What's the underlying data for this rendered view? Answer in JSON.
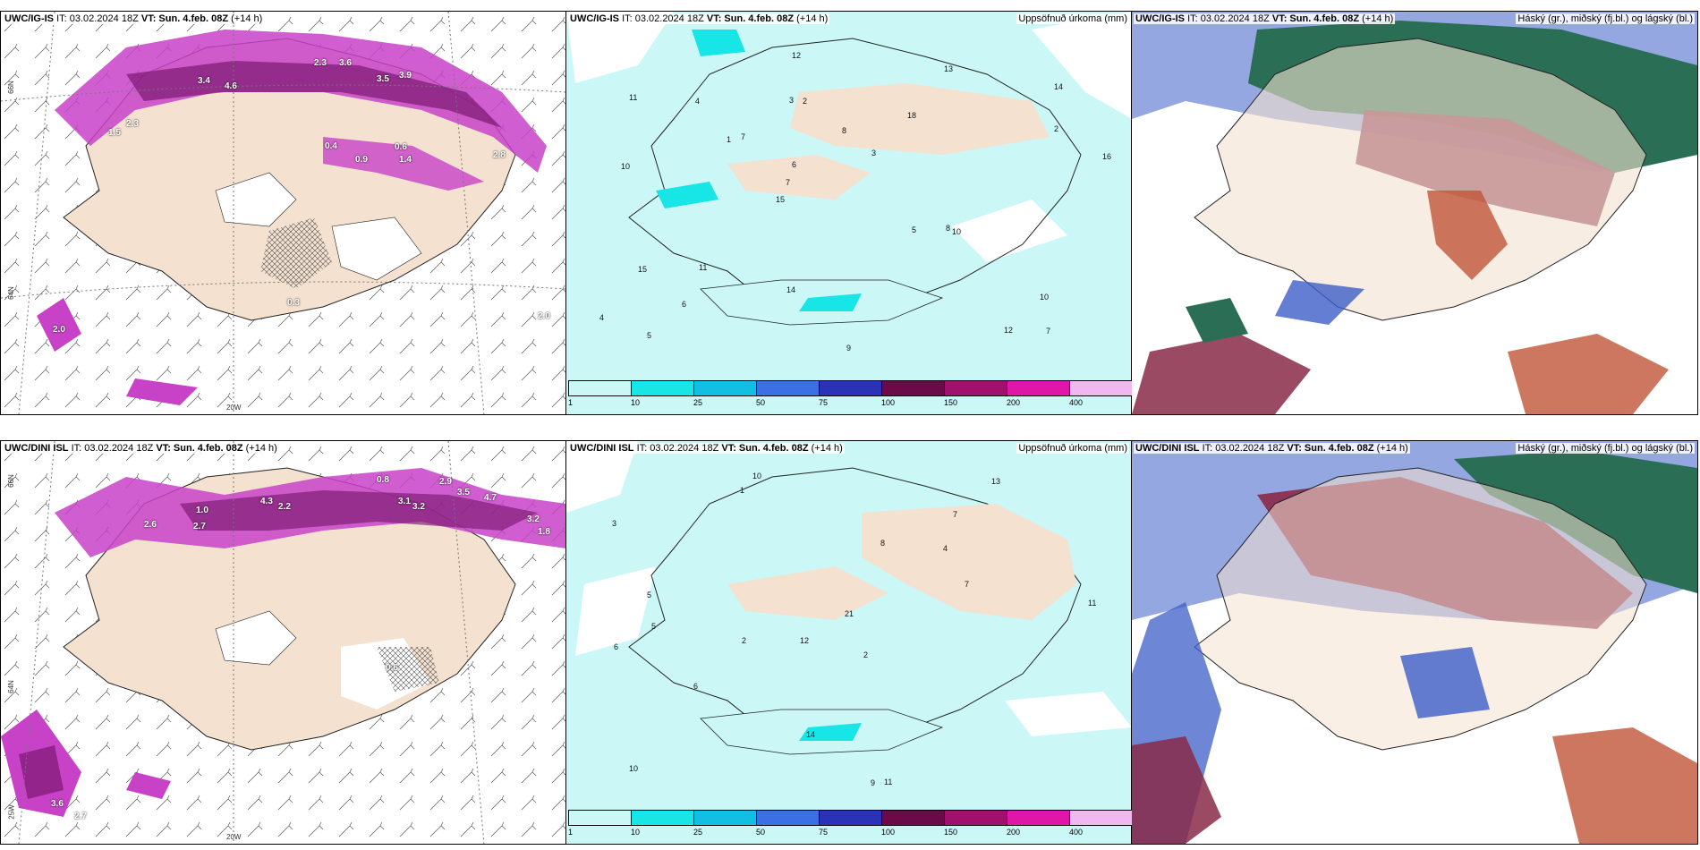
{
  "panels": [
    {
      "id": "top-left",
      "title_model": "UWC/IG-IS",
      "title_it": "IT: 03.02.2024 18Z",
      "title_vt": "VT: Sun. 4.feb. 08Z",
      "title_lead": "(+14 h)",
      "right_title": "",
      "precip_labels": [
        "3.4",
        "4.6",
        "2.3",
        "3.6",
        "3.5",
        "3.9",
        "1.5",
        "2.3",
        "0.4",
        "0.9",
        "0.6",
        "1.4",
        "0.3",
        "2.0",
        "2.8",
        "2.0"
      ]
    },
    {
      "id": "top-middle",
      "title_model": "UWC/IG-IS",
      "title_it": "IT: 03.02.2024 18Z",
      "title_vt": "VT: Sun. 4.feb. 08Z",
      "title_lead": "(+14 h)",
      "right_title": "Uppsöfnuð úrkoma (mm)",
      "numbers": [
        "7",
        "10",
        "14",
        "15",
        "18",
        "5",
        "3",
        "8",
        "15",
        "7",
        "4",
        "6",
        "2",
        "3",
        "10",
        "11",
        "12",
        "16",
        "5",
        "2",
        "7",
        "14",
        "6",
        "4",
        "13",
        "11",
        "12",
        "10",
        "8",
        "9",
        "1"
      ]
    },
    {
      "id": "top-right",
      "title_model": "UWC/IG-IS",
      "title_it": "IT: 03.02.2024 18Z",
      "title_vt": "VT: Sun. 4.feb. 08Z",
      "title_lead": "(+14 h)",
      "right_title": "Háský (gr.), miðský (fj.bl.) og lágský (bl.)"
    },
    {
      "id": "bottom-left",
      "title_model": "UWC/DINI ISL",
      "title_it": "IT: 03.02.2024 18Z",
      "title_vt": "VT: Sun. 4.feb. 08Z",
      "title_lead": "(+14 h)",
      "right_title": "",
      "precip_labels": [
        "2.6",
        "2.7",
        "1.0",
        "4.3",
        "2.2",
        "3.1",
        "3.2",
        "2.9",
        "3.5",
        "4.7",
        "3.2",
        "1.8",
        "0.6",
        "3.6",
        "2.7",
        "0.8"
      ]
    },
    {
      "id": "bottom-middle",
      "title_model": "UWC/DINI ISL",
      "title_it": "IT: 03.02.2024 18Z",
      "title_vt": "VT: Sun. 4.feb. 08Z",
      "title_lead": "(+14 h)",
      "right_title": "Uppsöfnuð úrkoma (mm)",
      "numbers": [
        "10",
        "7",
        "11",
        "12",
        "2",
        "5",
        "3",
        "4",
        "6",
        "8",
        "21",
        "10",
        "1",
        "2",
        "9",
        "11",
        "14",
        "13",
        "7",
        "6",
        "5"
      ]
    },
    {
      "id": "bottom-right",
      "title_model": "UWC/DINI ISL",
      "title_it": "IT: 03.02.2024 18Z",
      "title_vt": "VT: Sun. 4.feb. 08Z",
      "title_lead": "(+14 h)",
      "right_title": "Háský (gr.), miðský (fj.bl.) og lágský (bl.)"
    }
  ],
  "colorbar": {
    "labels": [
      "1",
      "10",
      "25",
      "50",
      "75",
      "100",
      "150",
      "200",
      "400"
    ],
    "colors": [
      "#ccf7f7",
      "#18e6e6",
      "#12bfe3",
      "#3b6fe3",
      "#2a32b8",
      "#6b0a46",
      "#a0106e",
      "#e016a8",
      "#f0b8ef"
    ]
  },
  "axis_labels": {
    "lat66": "66N",
    "lat64": "64N",
    "lon20": "20W",
    "lon25": "25W"
  },
  "colors": {
    "land": "#f4e1cf",
    "precip_light": "#ccf7f7",
    "precip_mag": "#c842c8",
    "cloud_high": "#2a6e55",
    "cloud_mid": "#8a2a48",
    "cloud_low": "#3c5ec8"
  }
}
